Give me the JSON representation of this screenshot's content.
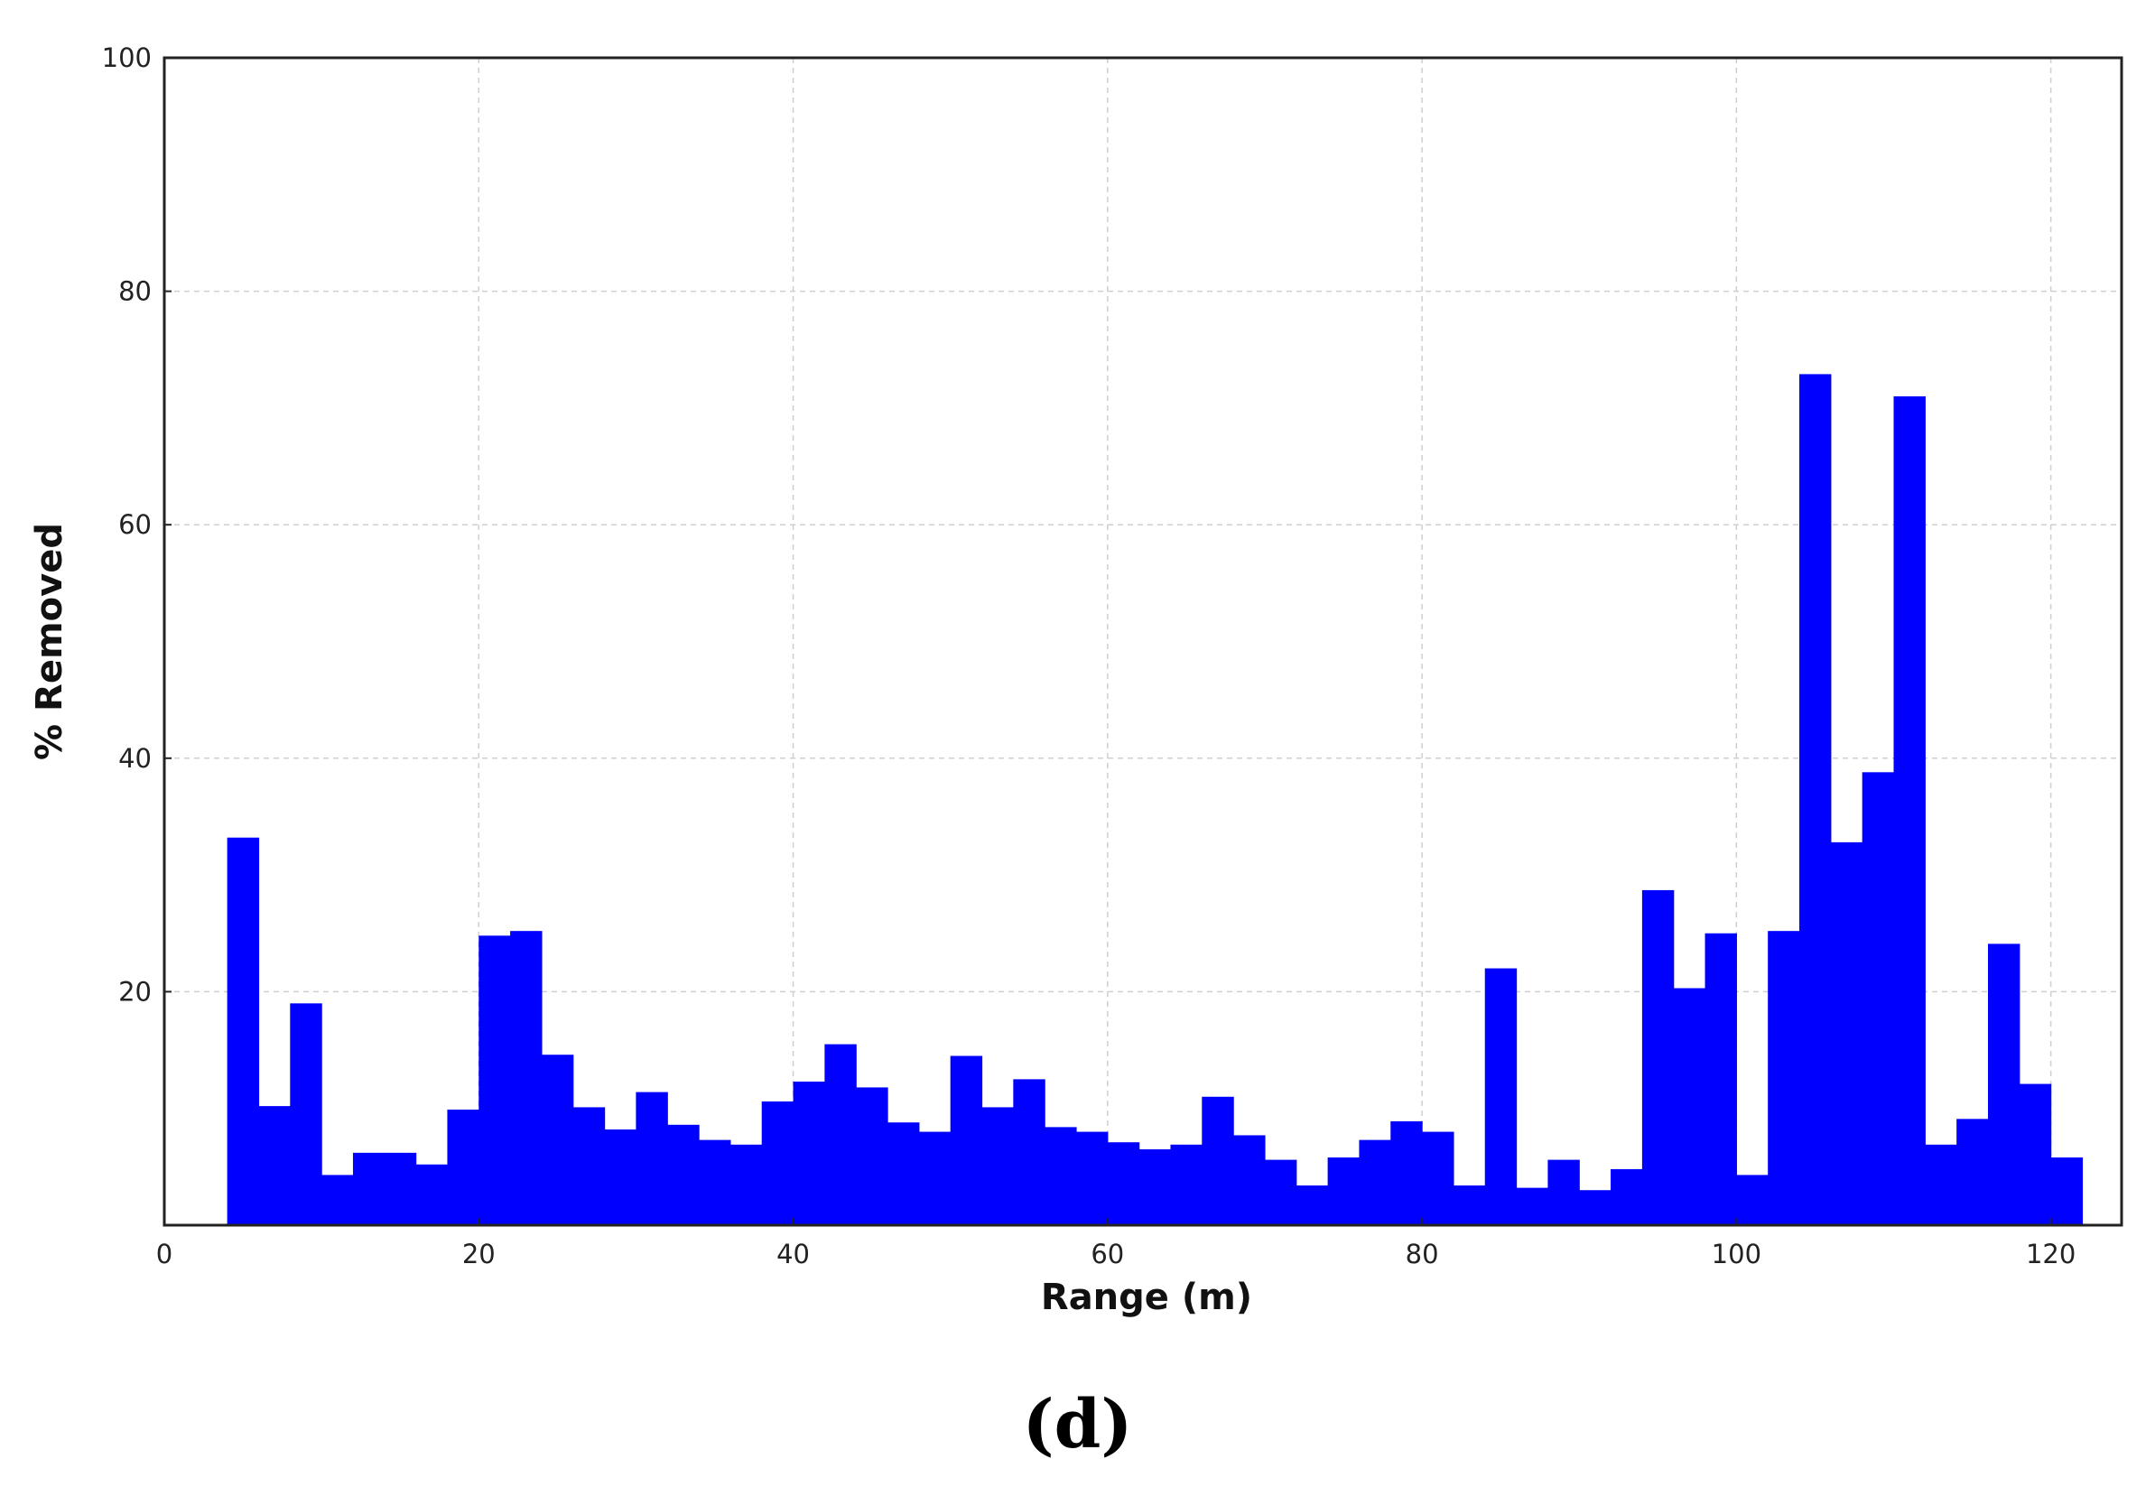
{
  "caption": "(d)",
  "chart_data": {
    "type": "bar",
    "title": "",
    "xlabel": "Range (m)",
    "ylabel": "% Removed",
    "xlim": [
      0,
      124.5
    ],
    "ylim": [
      0,
      100
    ],
    "xticks": [
      0,
      20,
      40,
      60,
      80,
      100,
      120
    ],
    "yticks": [
      20,
      40,
      60,
      80,
      100
    ],
    "grid": true,
    "bar_color": "#0000ff",
    "bin_width": 2,
    "bin_edges_start": 4,
    "values": [
      33.2,
      10.2,
      19.0,
      4.3,
      6.2,
      6.2,
      5.2,
      9.9,
      24.8,
      25.2,
      14.6,
      10.1,
      8.2,
      11.4,
      8.6,
      7.3,
      6.9,
      10.6,
      12.3,
      15.5,
      11.8,
      8.8,
      8.0,
      14.5,
      10.1,
      12.5,
      8.4,
      8.0,
      7.1,
      6.5,
      6.9,
      11.0,
      7.7,
      5.6,
      3.4,
      5.8,
      7.3,
      8.9,
      8.0,
      3.4,
      22.0,
      3.2,
      5.6,
      3.0,
      4.8,
      28.7,
      20.3,
      25.0,
      4.3,
      25.2,
      72.9,
      32.8,
      38.8,
      71.0,
      6.9,
      9.1,
      24.1,
      12.1,
      5.8
    ]
  }
}
